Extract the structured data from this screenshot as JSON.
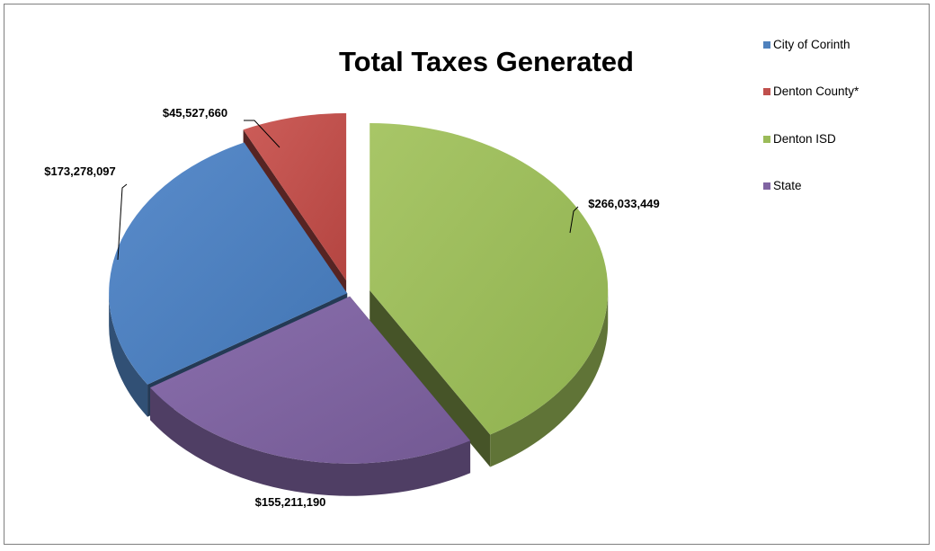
{
  "chart_data": {
    "type": "pie",
    "title": "Total Taxes Generated",
    "categories": [
      "City of Corinth",
      "Denton County*",
      "Denton ISD",
      "State"
    ],
    "values": [
      173278097,
      45527660,
      266033449,
      155211190
    ],
    "labels": [
      "$173,278,097",
      "$45,527,660",
      "$266,033,449",
      "$155,211,190"
    ],
    "colors": {
      "City of Corinth": "#4f81bd",
      "Denton County*": "#c0504d",
      "Denton ISD": "#9bbb59",
      "State": "#8064a2"
    },
    "legend_position": "top-right",
    "three_d": true,
    "exploded": true
  }
}
